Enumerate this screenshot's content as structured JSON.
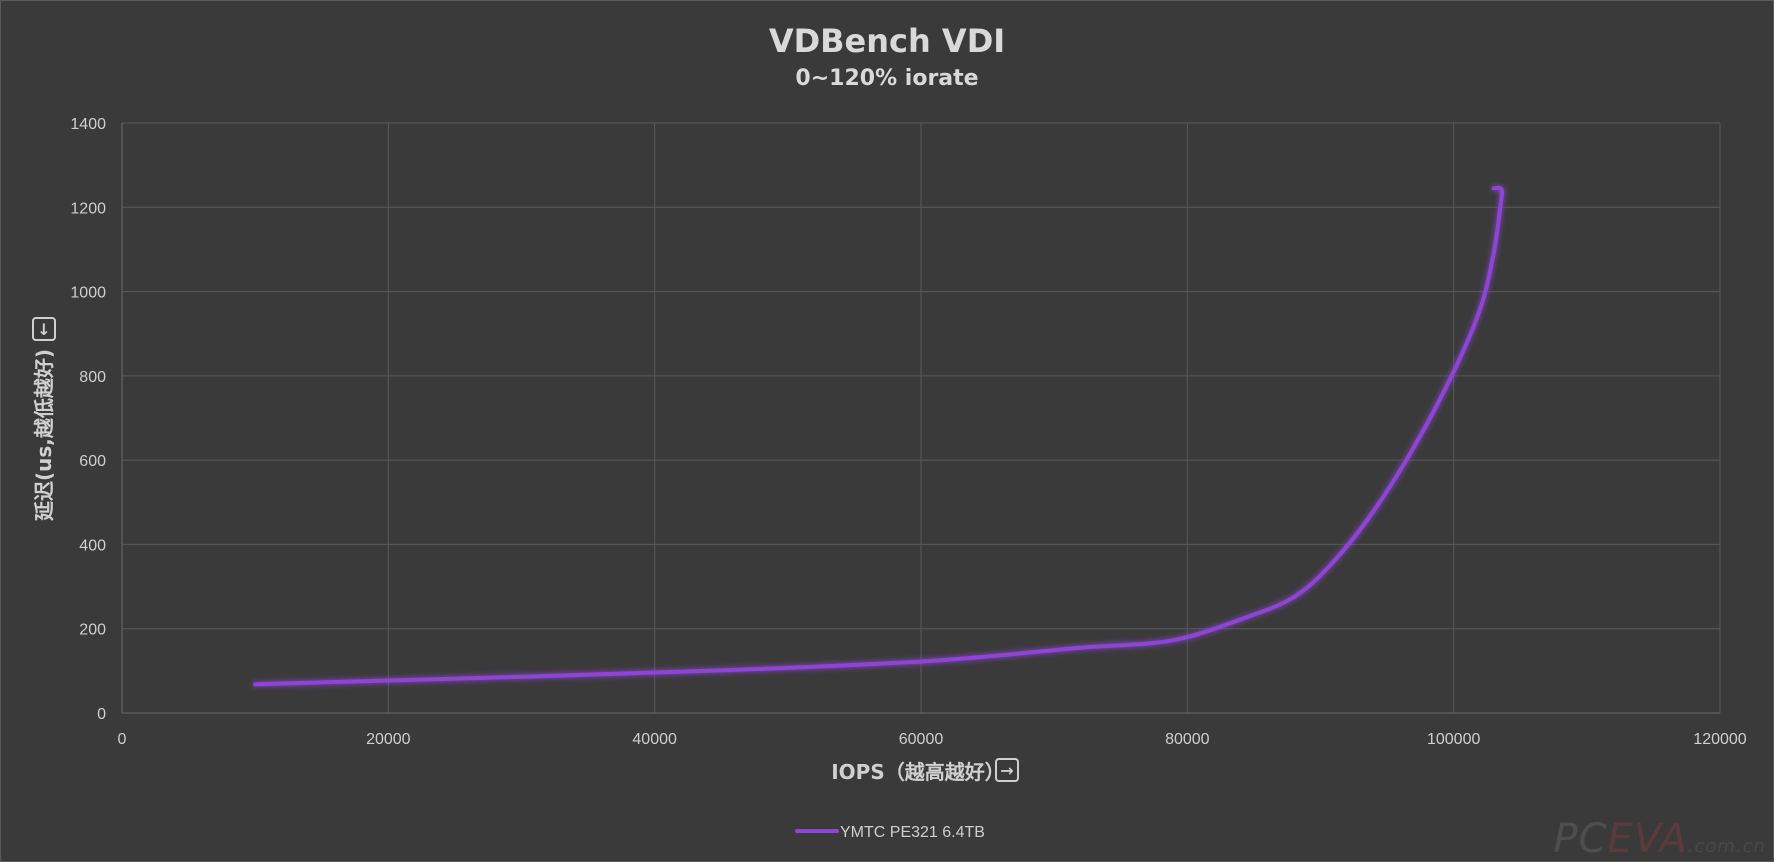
{
  "chart_data": {
    "type": "line",
    "title": "VDBench VDI",
    "subtitle": "0~120% iorate",
    "xlabel": "IOPS（越高越好）",
    "xlabel_icon": "→",
    "ylabel": "延迟(us,越低越好)",
    "ylabel_icon": "↓",
    "xlim": [
      0,
      120000
    ],
    "ylim": [
      0,
      1400
    ],
    "xticks": [
      0,
      20000,
      40000,
      60000,
      80000,
      100000,
      120000
    ],
    "yticks": [
      0,
      200,
      400,
      600,
      800,
      1000,
      1200,
      1400
    ],
    "grid": true,
    "legend_position": "bottom",
    "series": [
      {
        "name": "YMTC PE321 6.4TB",
        "color": "#8e44d6",
        "x": [
          10000,
          20000,
          30000,
          40000,
          50000,
          60000,
          66000,
          72000,
          77000,
          80000,
          84000,
          88000,
          91000,
          94000,
          97000,
          100000,
          102000,
          103000,
          103500,
          103600,
          103000
        ],
        "y": [
          68,
          77,
          86,
          96,
          107,
          122,
          137,
          155,
          165,
          180,
          222,
          275,
          360,
          480,
          630,
          810,
          960,
          1090,
          1200,
          1242,
          1245
        ]
      }
    ]
  },
  "watermark": {
    "pc": "PC",
    "eva": "EVA",
    "domain": ".com.cn"
  }
}
